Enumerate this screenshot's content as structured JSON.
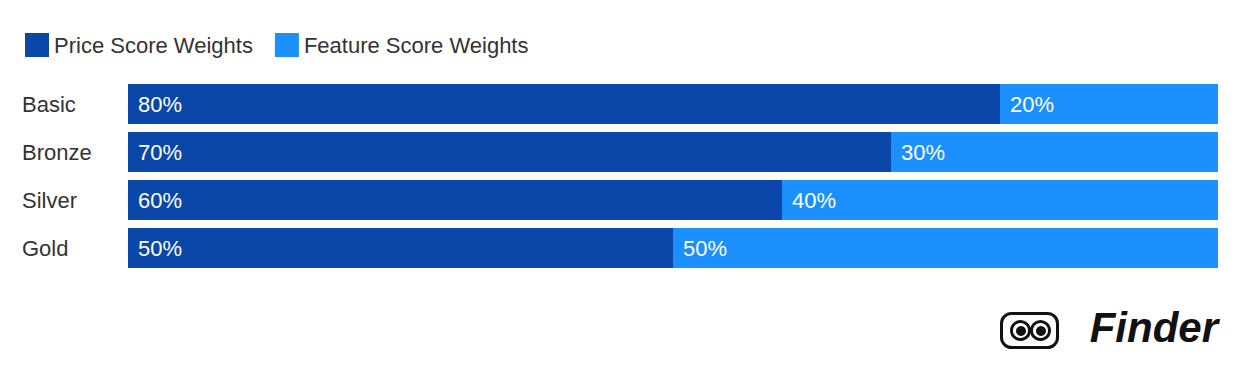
{
  "chart_data": {
    "type": "bar",
    "orientation": "horizontal",
    "stacked": true,
    "data_labels": true,
    "tick_labels": "y",
    "grid": false,
    "legend": "top-left",
    "categories": [
      "Basic",
      "Bronze",
      "Silver",
      "Gold"
    ],
    "series": [
      {
        "name": "Price Score Weights",
        "color": "#0b47a8",
        "values": [
          80,
          70,
          60,
          50
        ],
        "value_labels": [
          "80%",
          "70%",
          "60%",
          "50%"
        ]
      },
      {
        "name": "Feature Score Weights",
        "color": "#1b8ffb",
        "values": [
          20,
          30,
          40,
          50
        ],
        "value_labels": [
          "20%",
          "30%",
          "40%",
          "50%"
        ]
      }
    ],
    "xlim": [
      0,
      100
    ],
    "annotations": [
      "Finder"
    ]
  }
}
